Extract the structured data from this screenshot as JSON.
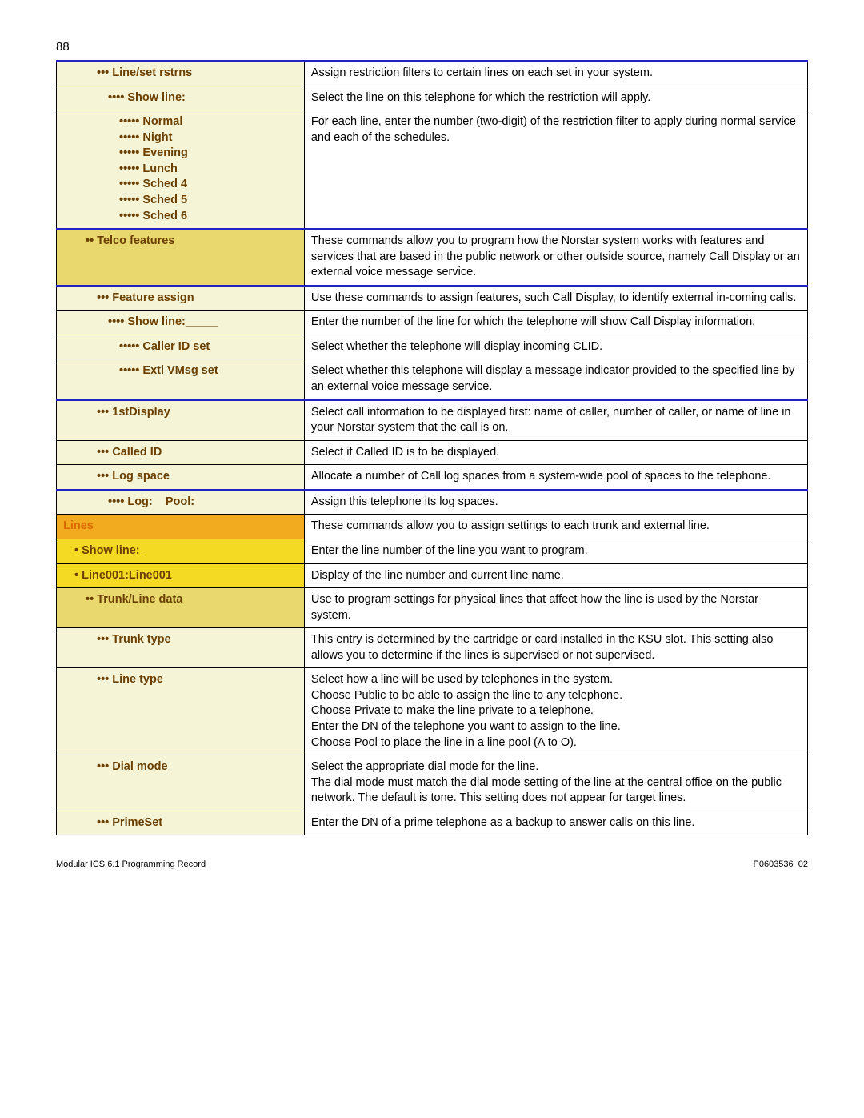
{
  "page_number": "88",
  "rows": [
    {
      "indent": 3,
      "label": "Line/set rstrns",
      "desc": "Assign restriction filters to certain lines on each set in your system.",
      "left_bg": "bg-light",
      "left_color": "txt-dark",
      "row_classes": "bt-blue"
    },
    {
      "indent": 4,
      "label": "Show line:_",
      "desc": "Select the line on this telephone for which the restriction will apply.",
      "left_bg": "bg-light",
      "left_color": "txt-dark"
    },
    {
      "indent": 5,
      "multi_labels": [
        "Normal",
        "Night",
        "Evening",
        "Lunch",
        "Sched 4",
        "Sched 5",
        "Sched 6"
      ],
      "desc": "For each line, enter the number (two-digit) of the restriction filter to apply during normal service and each of the schedules.",
      "left_bg": "bg-light",
      "left_color": "txt-dark",
      "row_classes": "bb-blue"
    },
    {
      "indent": 2,
      "label": "Telco features",
      "desc": "These commands allow you to program how the Norstar system works with features and services that are based in the public network or other outside source, namely Call Display or an external voice message service.",
      "left_bg": "bg-med",
      "left_color": "txt-dark",
      "row_classes": "bb-blue"
    },
    {
      "indent": 3,
      "label": "Feature assign",
      "desc": "Use these commands to assign features, such Call Display, to identify external in-coming calls.",
      "left_bg": "bg-light",
      "left_color": "txt-dark"
    },
    {
      "indent": 4,
      "label": "Show line:_____",
      "desc": "Enter the number of the line for which the telephone will show Call Display information.",
      "left_bg": "bg-light",
      "left_color": "txt-dark"
    },
    {
      "indent": 5,
      "label": "Caller ID set",
      "desc": "Select whether the telephone will display incoming CLID.",
      "left_bg": "bg-light",
      "left_color": "txt-dark"
    },
    {
      "indent": 5,
      "label": "Extl VMsg set",
      "desc": "Select whether this telephone will display a message indicator provided to the specified line by an external voice message service.",
      "left_bg": "bg-light",
      "left_color": "txt-dark",
      "row_classes": "bb-blue"
    },
    {
      "indent": 3,
      "label": "1stDisplay",
      "desc": "Select call information to be displayed first: name of caller, number of caller, or name of line in your Norstar system that the call is on.",
      "left_bg": "bg-light",
      "left_color": "txt-dark"
    },
    {
      "indent": 3,
      "label": "Called ID",
      "desc": "Select if Called ID is to be displayed.",
      "left_bg": "bg-light",
      "left_color": "txt-dark"
    },
    {
      "indent": 3,
      "label": "Log space",
      "desc": "Allocate a number of Call log spaces from a system-wide pool of spaces to the telephone.",
      "left_bg": "bg-light",
      "left_color": "txt-dark",
      "row_classes": "bb-blue"
    },
    {
      "indent": 4,
      "label": "Log:    Pool:",
      "desc": "Assign this telephone its log spaces.",
      "left_bg": "bg-light",
      "left_color": "txt-dark"
    },
    {
      "indent": 0,
      "label": "Lines",
      "desc": "These commands allow you to assign settings to each trunk and external line.",
      "left_bg": "bg-orange",
      "left_color": "txt-orange"
    },
    {
      "indent": 1,
      "label": "Show line:_",
      "desc": "Enter the line number of the line you want to program.",
      "left_bg": "bg-yellow",
      "left_color": "txt-dark"
    },
    {
      "indent": 1,
      "label": "Line001:Line001",
      "desc": "Display of the line number and current line name.",
      "left_bg": "bg-yellow",
      "left_color": "txt-dark"
    },
    {
      "indent": 2,
      "label": "Trunk/Line data",
      "desc": "Use to program settings for physical lines that affect how the line is used by the Norstar system.",
      "left_bg": "bg-med",
      "left_color": "txt-dark"
    },
    {
      "indent": 3,
      "label": "Trunk type",
      "desc": "This entry is determined by the cartridge or card installed in the KSU slot. This setting also allows you to determine if the lines is supervised or not supervised.",
      "left_bg": "bg-light",
      "left_color": "txt-dark"
    },
    {
      "indent": 3,
      "label": "Line type",
      "multi_desc": [
        "Select how a line will be used by telephones in the system.",
        "Choose Public to be able to assign the line to any telephone.",
        "Choose Private to make the line private to a telephone.",
        "Enter the DN of the telephone you want to assign to the line.",
        "Choose Pool to place the line in a line pool (A to O)."
      ],
      "left_bg": "bg-light",
      "left_color": "txt-dark"
    },
    {
      "indent": 3,
      "label": "Dial mode",
      "multi_desc": [
        "Select the appropriate dial mode for the line.",
        "The dial mode must match the dial mode setting of the line at the central office on the public network. The default is tone. This setting does not appear for target lines."
      ],
      "left_bg": "bg-light",
      "left_color": "txt-dark"
    },
    {
      "indent": 3,
      "label": "PrimeSet",
      "desc": "Enter the DN of a prime telephone as a backup to answer calls on this line.",
      "left_bg": "bg-light",
      "left_color": "txt-dark"
    }
  ],
  "footer_left": "Modular ICS 6.1 Programming Record",
  "footer_right": "P0603536  02"
}
